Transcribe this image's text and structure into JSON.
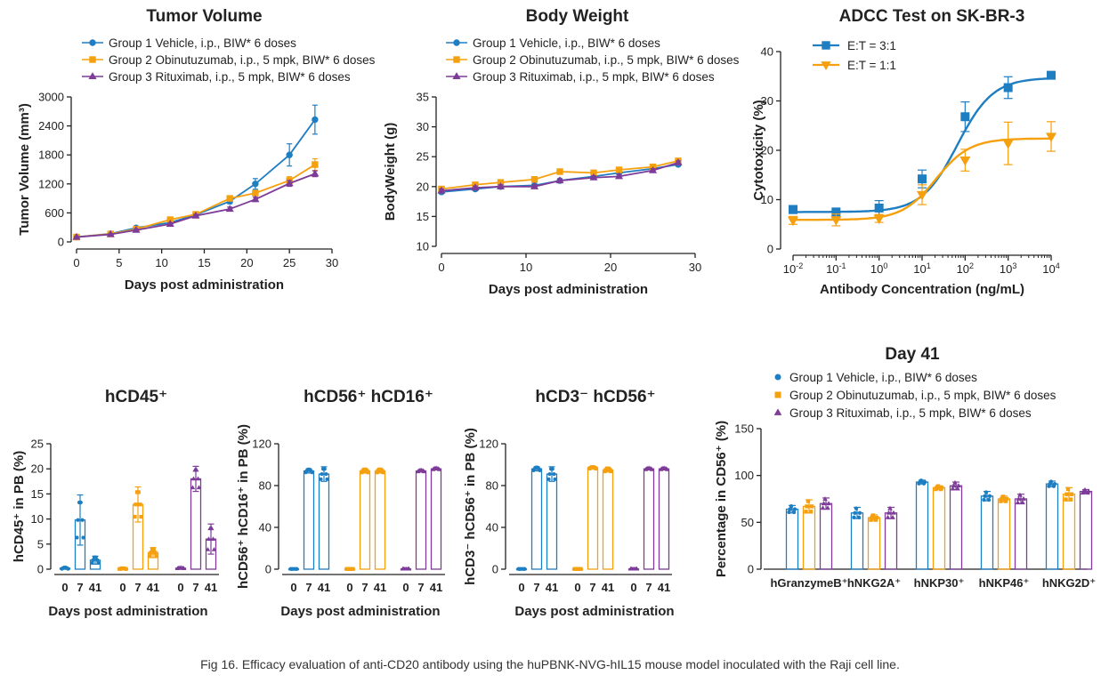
{
  "caption": "Fig 16. Efficacy evaluation of anti-CD20 antibody using the huPBNK-NVG-hIL15 mouse model inoculated with the Raji cell line.",
  "colors": {
    "group1": "#1f7ec2",
    "group2": "#f5a00f",
    "group3": "#7d3c98",
    "axis": "#222222"
  },
  "chart_data": [
    {
      "id": "tumor",
      "type": "line",
      "title": "Tumor Volume",
      "xlabel": "Days post administration",
      "ylabel": "Tumor Volume (mm³)",
      "xlim": [
        0,
        30
      ],
      "ylim": [
        0,
        3000
      ],
      "xticks": [
        0,
        5,
        10,
        15,
        20,
        25,
        30
      ],
      "yticks": [
        0,
        600,
        1200,
        1800,
        2400,
        3000
      ],
      "x": [
        0,
        4,
        7,
        11,
        14,
        18,
        21,
        25,
        28
      ],
      "series": [
        {
          "name": "Group 1 Vehicle, i.p., BIW* 6 doses",
          "color": "#1f7ec2",
          "marker": "circle",
          "values": [
            100,
            170,
            290,
            400,
            560,
            840,
            1200,
            1800,
            2530
          ],
          "err": [
            10,
            15,
            20,
            30,
            40,
            50,
            110,
            230,
            300
          ]
        },
        {
          "name": "Group 2 Obinutuzumab, i.p., 5 mpk, BIW* 6 doses",
          "color": "#f5a00f",
          "marker": "square",
          "values": [
            100,
            165,
            265,
            460,
            570,
            900,
            1010,
            1270,
            1600
          ],
          "err": [
            10,
            15,
            20,
            30,
            35,
            45,
            50,
            80,
            120
          ]
        },
        {
          "name": "Group 3 Rituximab, i.p., 5 mpk, BIW* 6 doses",
          "color": "#7d3c98",
          "marker": "triangle",
          "values": [
            100,
            155,
            245,
            370,
            540,
            680,
            880,
            1210,
            1410
          ],
          "err": [
            10,
            12,
            18,
            25,
            30,
            40,
            45,
            60,
            60
          ]
        }
      ]
    },
    {
      "id": "body",
      "type": "line",
      "title": "Body Weight",
      "xlabel": "Days post administration",
      "ylabel": "BodyWeight (g)",
      "xlim": [
        0,
        30
      ],
      "ylim": [
        10,
        35
      ],
      "xticks": [
        0,
        10,
        20,
        30
      ],
      "yticks": [
        10,
        15,
        20,
        25,
        30,
        35
      ],
      "x": [
        0,
        4,
        7,
        11,
        14,
        18,
        21,
        25,
        28
      ],
      "series": [
        {
          "name": "Group 1 Vehicle, i.p., BIW* 6 doses",
          "color": "#1f7ec2",
          "marker": "circle",
          "values": [
            19.1,
            19.6,
            20.0,
            20.2,
            21.0,
            21.7,
            22.3,
            23.0,
            23.7
          ],
          "err": [
            0.3,
            0.3,
            0.3,
            0.3,
            0.3,
            0.3,
            0.3,
            0.3,
            0.3
          ]
        },
        {
          "name": "Group 2 Obinutuzumab, i.p., 5 mpk, BIW* 6 doses",
          "color": "#f5a00f",
          "marker": "square",
          "values": [
            19.6,
            20.3,
            20.7,
            21.2,
            22.5,
            22.3,
            22.8,
            23.3,
            24.3
          ],
          "err": [
            0.3,
            0.3,
            0.3,
            0.3,
            0.3,
            0.4,
            0.4,
            0.4,
            0.4
          ]
        },
        {
          "name": "Group 3 Rituximab, i.p., 5 mpk, BIW* 6 doses",
          "color": "#7d3c98",
          "marker": "triangle",
          "values": [
            19.3,
            19.8,
            20.0,
            20.0,
            21.0,
            21.5,
            21.7,
            22.7,
            24.0
          ],
          "err": [
            0.3,
            0.3,
            0.3,
            0.3,
            0.3,
            0.3,
            0.3,
            0.3,
            0.3
          ]
        }
      ]
    },
    {
      "id": "adcc",
      "type": "line",
      "title": "ADCC Test on SK-BR-3",
      "xlabel": "Antibody Concentration (ng/mL)",
      "ylabel": "Cytotoxicity (%)",
      "xscale": "log",
      "xlim": [
        0.01,
        10000
      ],
      "ylim": [
        0,
        40
      ],
      "xtick_exponents": [
        "-2",
        "-1",
        "0",
        "1",
        "2",
        "3",
        "4"
      ],
      "yticks": [
        0,
        10,
        20,
        30,
        40
      ],
      "x": [
        0.01,
        0.1,
        1,
        10,
        100,
        1000,
        10000
      ],
      "series": [
        {
          "name": "E:T = 3:1",
          "color": "#1f7ec2",
          "marker": "square",
          "values": [
            8.0,
            7.3,
            8.3,
            14.2,
            26.8,
            32.7,
            35.2
          ],
          "err": [
            0.8,
            1.0,
            1.5,
            1.8,
            3.0,
            2.2,
            0.4
          ],
          "fit": {
            "bottom": 7.5,
            "top": 34.7,
            "logEC50": 1.82,
            "hill": 1.05
          }
        },
        {
          "name": "E:T = 1:1",
          "color": "#f5a00f",
          "marker": "triangle-down",
          "values": [
            5.8,
            5.9,
            6.2,
            11.0,
            18.0,
            21.4,
            22.8
          ],
          "err": [
            0.8,
            1.2,
            0.8,
            2.0,
            2.2,
            4.3,
            3.0
          ],
          "fit": {
            "bottom": 5.9,
            "top": 22.4,
            "logEC50": 1.32,
            "hill": 1.1
          }
        }
      ]
    },
    {
      "id": "hcd45",
      "type": "bar",
      "title": "hCD45⁺",
      "xlabel": "Days post administration",
      "ylabel": "hCD45⁺ in PB (%)",
      "ylim": [
        0,
        25
      ],
      "yticks": [
        0,
        5,
        10,
        15,
        20,
        25
      ],
      "categories": [
        "0",
        "7",
        "41"
      ],
      "groups": [
        {
          "color": "#1f7ec2",
          "marker": "circle",
          "values": [
            0.2,
            9.8,
            1.8
          ],
          "err": [
            0.2,
            5.0,
            0.8
          ]
        },
        {
          "color": "#f5a00f",
          "marker": "square",
          "values": [
            0.1,
            12.9,
            3.3
          ],
          "err": [
            0.1,
            3.5,
            1.0
          ]
        },
        {
          "color": "#7d3c98",
          "marker": "triangle",
          "values": [
            0.2,
            18.0,
            6.0
          ],
          "err": [
            0.1,
            2.5,
            3.0
          ]
        }
      ]
    },
    {
      "id": "hcd56cd16",
      "type": "bar",
      "title": "hCD56⁺ hCD16⁺",
      "xlabel": "Days post administration",
      "ylabel": "hCD56⁺ hCD16⁺ in PB (%)",
      "ylim": [
        0,
        120
      ],
      "yticks": [
        0,
        40,
        80,
        120
      ],
      "categories": [
        "0",
        "7",
        "41"
      ],
      "groups": [
        {
          "color": "#1f7ec2",
          "marker": "circle",
          "values": [
            0.2,
            94,
            91
          ],
          "err": [
            0,
            2,
            7
          ]
        },
        {
          "color": "#f5a00f",
          "marker": "square",
          "values": [
            0.2,
            94,
            94
          ],
          "err": [
            0,
            2,
            2
          ]
        },
        {
          "color": "#7d3c98",
          "marker": "triangle",
          "values": [
            0.2,
            94,
            96
          ],
          "err": [
            0,
            1,
            1
          ]
        }
      ]
    },
    {
      "id": "hcd3cd56",
      "type": "bar",
      "title": "hCD3⁻ hCD56⁺",
      "xlabel": "Days post administration",
      "ylabel": "hCD3⁻ hCD56⁺ in PB (%)",
      "ylim": [
        0,
        120
      ],
      "yticks": [
        0,
        40,
        80,
        120
      ],
      "categories": [
        "0",
        "7",
        "41"
      ],
      "groups": [
        {
          "color": "#1f7ec2",
          "marker": "circle",
          "values": [
            0.2,
            96,
            91
          ],
          "err": [
            0,
            2,
            7
          ]
        },
        {
          "color": "#f5a00f",
          "marker": "square",
          "values": [
            0.2,
            97,
            95
          ],
          "err": [
            0,
            1,
            2
          ]
        },
        {
          "color": "#7d3c98",
          "marker": "triangle",
          "values": [
            0.2,
            96,
            96
          ],
          "err": [
            0,
            1,
            1
          ]
        }
      ]
    },
    {
      "id": "day41",
      "type": "bar",
      "title": "Day 41",
      "ylabel": "Percentage in CD56⁺ (%)",
      "ylim": [
        0,
        150
      ],
      "yticks": [
        0,
        50,
        100,
        150
      ],
      "categories": [
        "hGranzymeB⁺",
        "hNKG2A⁺",
        "hNKP30⁺",
        "hNKP46⁺",
        "hNKG2D⁺"
      ],
      "series": [
        {
          "name": "Group 1 Vehicle, i.p., BIW* 6 doses",
          "color": "#1f7ec2",
          "marker": "circle",
          "values": [
            64,
            60,
            93,
            78,
            91
          ],
          "err": [
            4,
            6,
            2,
            5,
            3
          ]
        },
        {
          "name": "Group 2 Obinutuzumab, i.p., 5 mpk, BIW* 6 doses",
          "color": "#f5a00f",
          "marker": "square",
          "values": [
            67,
            55,
            87,
            75,
            80
          ],
          "err": [
            7,
            3,
            2,
            3,
            7
          ]
        },
        {
          "name": "Group 3 Rituximab, i.p., 5 mpk, BIW* 6 doses",
          "color": "#7d3c98",
          "marker": "triangle",
          "values": [
            70,
            60,
            89,
            75,
            83
          ],
          "err": [
            6,
            6,
            4,
            5,
            2
          ]
        }
      ]
    }
  ]
}
